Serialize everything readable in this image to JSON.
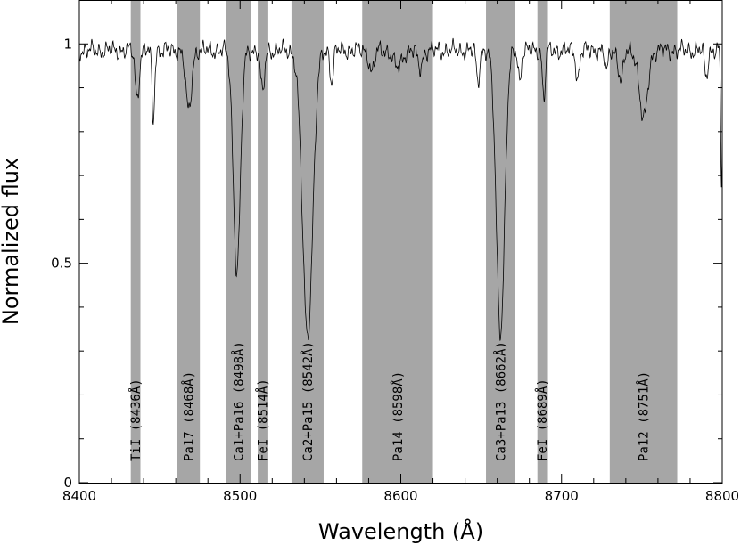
{
  "chart_data": {
    "type": "line",
    "title": "",
    "xlabel": "Wavelength (Å)",
    "ylabel": "Normalized flux",
    "xlim": [
      8400,
      8800
    ],
    "ylim": [
      0,
      1.1
    ],
    "x_ticks": [
      8400,
      8500,
      8600,
      8700,
      8800
    ],
    "x_tick_labels": [
      "8400",
      "8500",
      "8600",
      "8700",
      "8800"
    ],
    "y_ticks": [
      0,
      0.5,
      1
    ],
    "y_tick_labels": [
      "0",
      "0.5",
      "1"
    ],
    "grid": false,
    "legend": "none",
    "line_color": "#000000",
    "band_color": "#a6a6a6",
    "bands": [
      {
        "label": "TiI (8436Å)",
        "x0": 8432,
        "x1": 8438
      },
      {
        "label": "Pa17 (8468Å)",
        "x0": 8461,
        "x1": 8475
      },
      {
        "label": "Ca1+Pa16 (8498Å)",
        "x0": 8491,
        "x1": 8507
      },
      {
        "label": "FeI (8514Å)",
        "x0": 8511,
        "x1": 8517
      },
      {
        "label": "Ca2+Pa15 (8542Å)",
        "x0": 8532,
        "x1": 8552
      },
      {
        "label": "Pa14 (8598Å)",
        "x0": 8576,
        "x1": 8620
      },
      {
        "label": "Ca3+Pa13 (8662Å)",
        "x0": 8653,
        "x1": 8671
      },
      {
        "label": "FeI (8689Å)",
        "x0": 8685,
        "x1": 8691
      },
      {
        "label": "Pa12 (8751Å)",
        "x0": 8730,
        "x1": 8772
      }
    ],
    "continuum": 0.985,
    "absorption_lines": [
      {
        "x": 8436,
        "depth": 0.11,
        "width": 1.2
      },
      {
        "x": 8446,
        "depth": 0.16,
        "width": 0.8
      },
      {
        "x": 8468,
        "depth": 0.14,
        "width": 1.8
      },
      {
        "x": 8498,
        "depth": 0.5,
        "width": 2.2
      },
      {
        "x": 8514,
        "depth": 0.1,
        "width": 1.2
      },
      {
        "x": 8542,
        "depth": 0.65,
        "width": 3.2
      },
      {
        "x": 8557,
        "depth": 0.07,
        "width": 1.0
      },
      {
        "x": 8582,
        "depth": 0.05,
        "width": 1.5
      },
      {
        "x": 8598,
        "depth": 0.04,
        "width": 2.5
      },
      {
        "x": 8612,
        "depth": 0.04,
        "width": 1.5
      },
      {
        "x": 8648,
        "depth": 0.07,
        "width": 1.0
      },
      {
        "x": 8662,
        "depth": 0.64,
        "width": 2.6
      },
      {
        "x": 8674,
        "depth": 0.07,
        "width": 0.9
      },
      {
        "x": 8689,
        "depth": 0.11,
        "width": 0.9
      },
      {
        "x": 8710,
        "depth": 0.07,
        "width": 1.0
      },
      {
        "x": 8728,
        "depth": 0.05,
        "width": 1.0
      },
      {
        "x": 8737,
        "depth": 0.07,
        "width": 1.5
      },
      {
        "x": 8751,
        "depth": 0.16,
        "width": 2.5
      },
      {
        "x": 8790,
        "depth": 0.06,
        "width": 1.0
      },
      {
        "x": 8799.5,
        "depth": 0.3,
        "width": 0.5
      }
    ]
  }
}
